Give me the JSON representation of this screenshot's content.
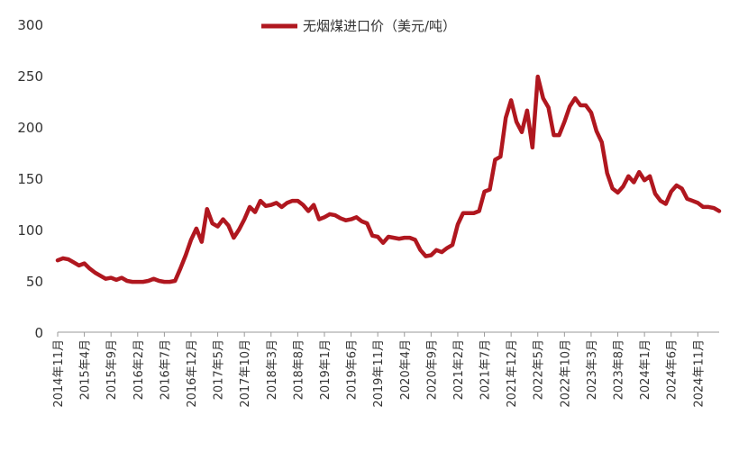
{
  "chart_data": {
    "type": "line",
    "title": "",
    "xlabel": "",
    "ylabel": "",
    "ylim": [
      0,
      300
    ],
    "yticks": [
      0,
      50,
      100,
      150,
      200,
      250,
      300
    ],
    "grid": false,
    "legend_position": "top-center",
    "x_tick_labels": [
      "2014年11月",
      "2015年4月",
      "2015年9月",
      "2016年2月",
      "2016年7月",
      "2016年12月",
      "2017年5月",
      "2017年10月",
      "2018年3月",
      "2018年8月",
      "2019年1月",
      "2019年6月",
      "2019年11月",
      "2020年4月",
      "2020年9月",
      "2021年2月",
      "2021年7月",
      "2021年12月",
      "2022年5月",
      "2022年10月",
      "2023年3月",
      "2023年8月",
      "2024年1月",
      "2024年6月",
      "2024年11月"
    ],
    "series": [
      {
        "name": "无烟煤进口价（美元/吨）",
        "color": "#B0171F",
        "values": [
          70,
          72,
          71,
          68,
          65,
          67,
          62,
          58,
          55,
          52,
          53,
          51,
          53,
          50,
          49,
          49,
          49,
          50,
          52,
          50,
          49,
          49,
          50,
          62,
          75,
          90,
          101,
          88,
          120,
          106,
          103,
          110,
          104,
          92,
          100,
          110,
          122,
          117,
          128,
          123,
          124,
          126,
          122,
          126,
          128,
          128,
          124,
          118,
          124,
          110,
          112,
          115,
          114,
          111,
          109,
          110,
          112,
          108,
          106,
          94,
          93,
          87,
          93,
          92,
          91,
          92,
          92,
          90,
          80,
          74,
          75,
          80,
          78,
          82,
          85,
          105,
          116,
          116,
          116,
          118,
          137,
          139,
          168,
          171,
          209,
          226,
          205,
          195,
          216,
          180,
          249,
          228,
          219,
          192,
          192,
          205,
          220,
          228,
          221,
          221,
          214,
          196,
          185,
          155,
          140,
          136,
          142,
          152,
          146,
          156,
          148,
          152,
          135,
          128,
          125,
          137,
          143,
          140,
          130,
          128,
          126,
          122,
          122,
          121,
          118
        ]
      }
    ]
  }
}
